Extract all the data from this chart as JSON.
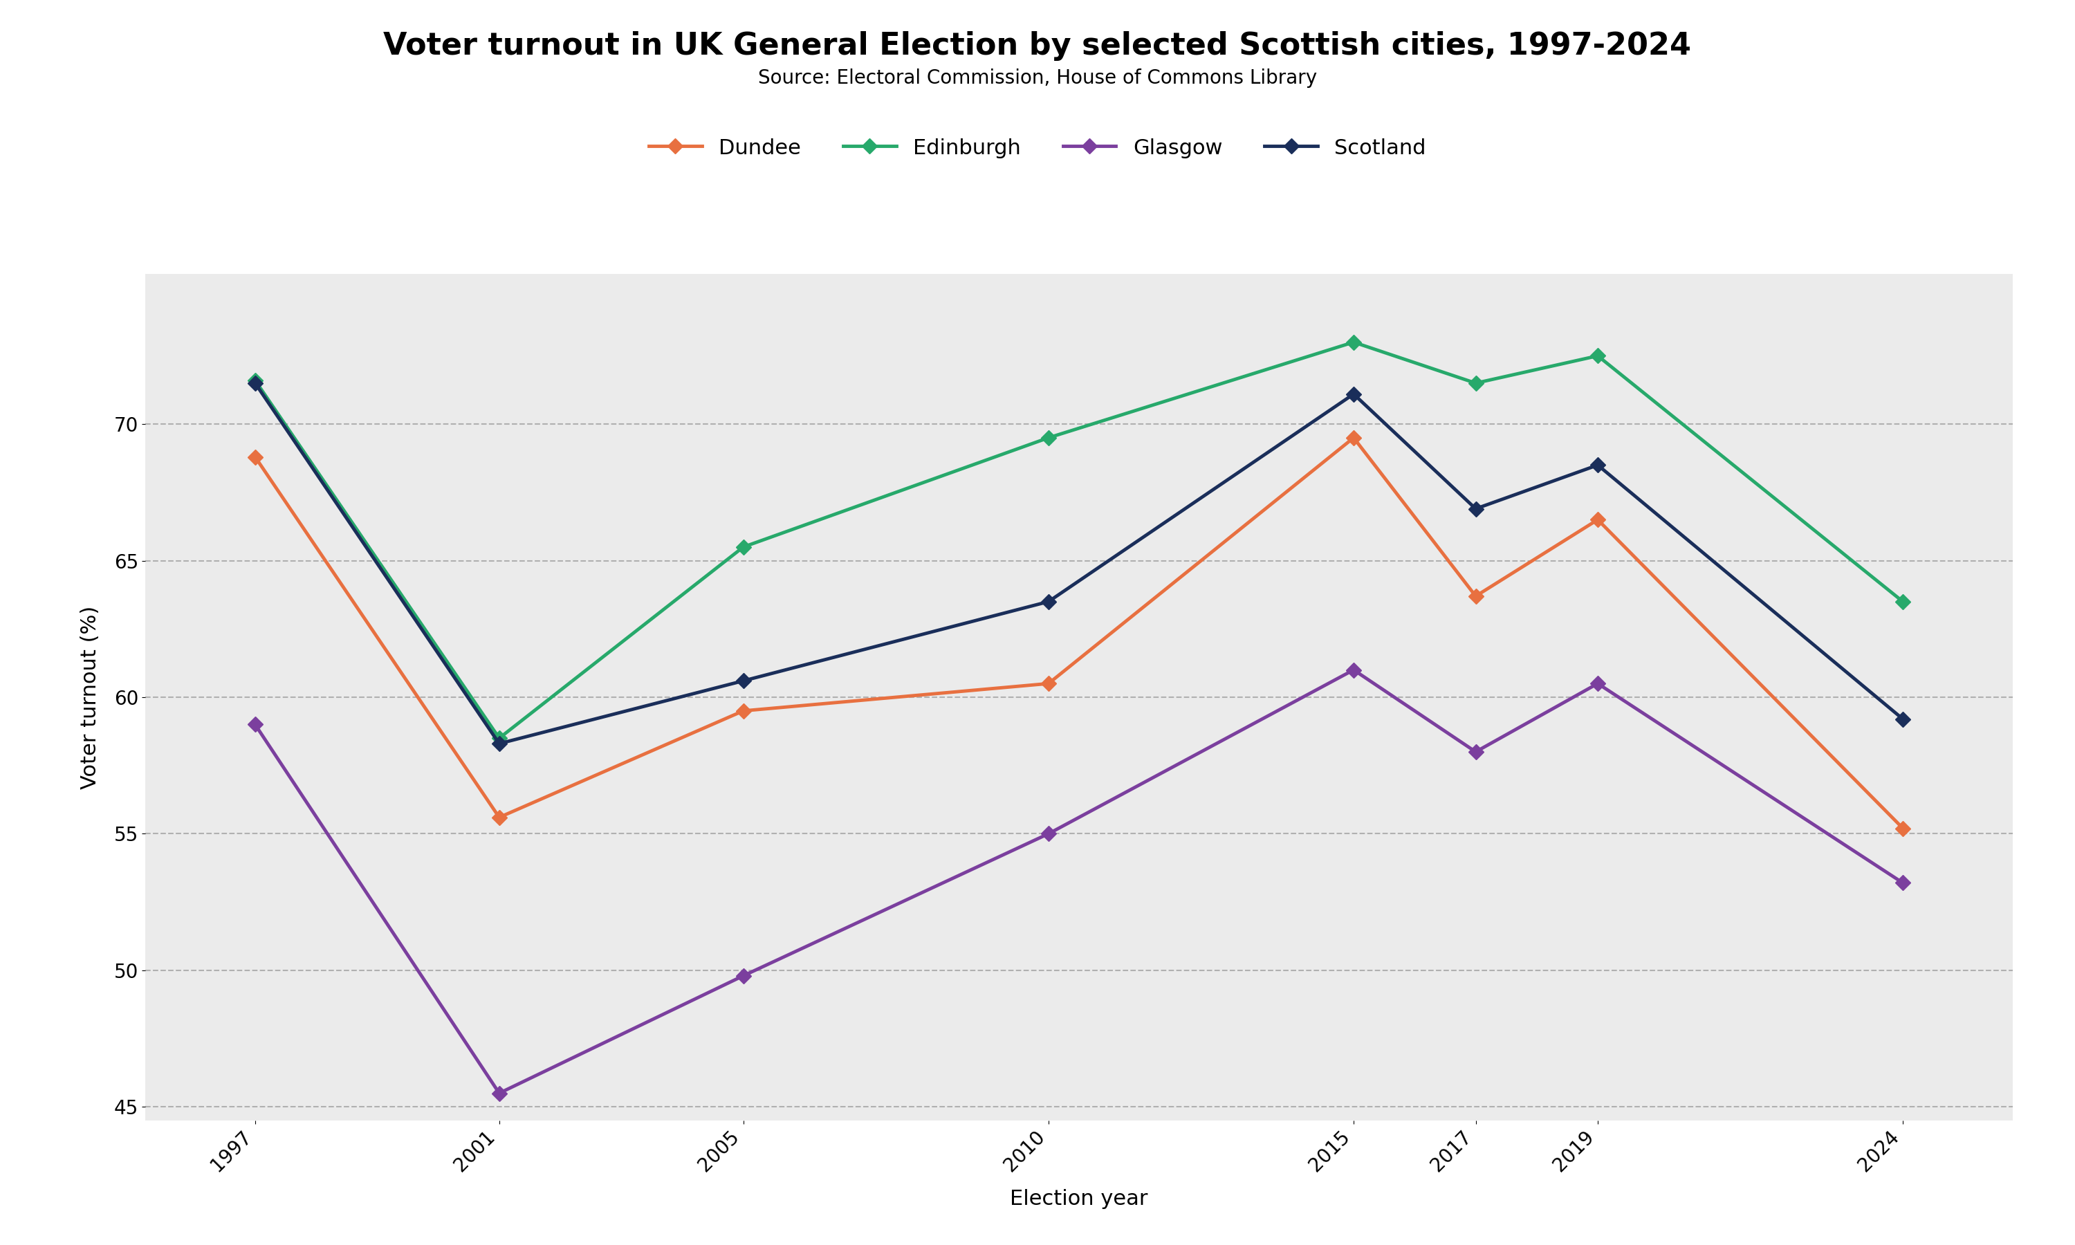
{
  "title": "Voter turnout in UK General Election by selected Scottish cities, 1997-2024",
  "subtitle": "Source: Electoral Commission, House of Commons Library",
  "xlabel": "Election year",
  "ylabel": "Voter turnout (%)",
  "years": [
    1997,
    2001,
    2005,
    2010,
    2015,
    2017,
    2019,
    2024
  ],
  "series": {
    "Dundee": {
      "values": [
        68.8,
        55.6,
        59.5,
        60.5,
        69.5,
        63.7,
        66.5,
        55.2
      ],
      "color": "#E87040",
      "marker": "D"
    },
    "Edinburgh": {
      "values": [
        71.6,
        58.5,
        65.5,
        69.5,
        73.0,
        71.5,
        72.5,
        63.5
      ],
      "color": "#27A96B",
      "marker": "D"
    },
    "Glasgow": {
      "values": [
        59.0,
        45.5,
        49.8,
        55.0,
        61.0,
        58.0,
        60.5,
        53.2
      ],
      "color": "#7B3F9E",
      "marker": "D"
    },
    "Scotland": {
      "values": [
        71.5,
        58.3,
        60.6,
        63.5,
        71.1,
        66.9,
        68.5,
        59.2
      ],
      "color": "#1A2E5A",
      "marker": "D"
    }
  },
  "ylim": [
    44.5,
    75.5
  ],
  "yticks": [
    45,
    50,
    55,
    60,
    65,
    70
  ],
  "background_color": "#EBEBEB",
  "outer_background": "#FFFFFF",
  "grid_color": "#AAAAAA",
  "title_fontsize": 32,
  "subtitle_fontsize": 20,
  "axis_label_fontsize": 22,
  "tick_fontsize": 20,
  "legend_fontsize": 22,
  "linewidth": 3.5,
  "markersize": 11
}
